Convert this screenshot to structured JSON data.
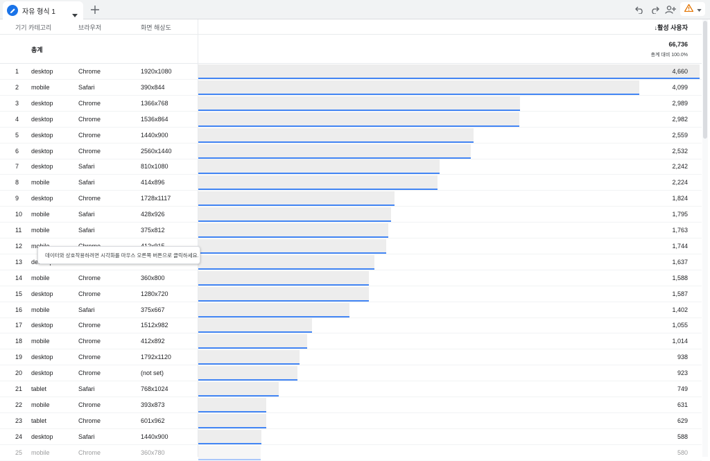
{
  "tab": {
    "title": "자유 형식 1"
  },
  "columns": {
    "category": "기기 카테고리",
    "browser": "브라우저",
    "resolution": "화면 해상도",
    "metric": "↓활성 사용자"
  },
  "totals": {
    "label": "총계",
    "value": "66,736",
    "sub": "총계 대비 100.0%"
  },
  "max_value": 4660,
  "rows": [
    {
      "idx": "1",
      "cat": "desktop",
      "br": "Chrome",
      "res": "1920x1080",
      "val": "4,660",
      "n": 4660
    },
    {
      "idx": "2",
      "cat": "mobile",
      "br": "Safari",
      "res": "390x844",
      "val": "4,099",
      "n": 4099
    },
    {
      "idx": "3",
      "cat": "desktop",
      "br": "Chrome",
      "res": "1366x768",
      "val": "2,989",
      "n": 2989
    },
    {
      "idx": "4",
      "cat": "desktop",
      "br": "Chrome",
      "res": "1536x864",
      "val": "2,982",
      "n": 2982
    },
    {
      "idx": "5",
      "cat": "desktop",
      "br": "Chrome",
      "res": "1440x900",
      "val": "2,559",
      "n": 2559
    },
    {
      "idx": "6",
      "cat": "desktop",
      "br": "Chrome",
      "res": "2560x1440",
      "val": "2,532",
      "n": 2532
    },
    {
      "idx": "7",
      "cat": "desktop",
      "br": "Safari",
      "res": "810x1080",
      "val": "2,242",
      "n": 2242
    },
    {
      "idx": "8",
      "cat": "mobile",
      "br": "Safari",
      "res": "414x896",
      "val": "2,224",
      "n": 2224
    },
    {
      "idx": "9",
      "cat": "desktop",
      "br": "Chrome",
      "res": "1728x1117",
      "val": "1,824",
      "n": 1824
    },
    {
      "idx": "10",
      "cat": "mobile",
      "br": "Safari",
      "res": "428x926",
      "val": "1,795",
      "n": 1795
    },
    {
      "idx": "11",
      "cat": "mobile",
      "br": "Safari",
      "res": "375x812",
      "val": "1,763",
      "n": 1763
    },
    {
      "idx": "12",
      "cat": "mobile",
      "br": "Chrome",
      "res": "412x915",
      "val": "1,744",
      "n": 1744
    },
    {
      "idx": "13",
      "cat": "desktop",
      "br": "",
      "res": "",
      "val": "1,637",
      "n": 1637
    },
    {
      "idx": "14",
      "cat": "mobile",
      "br": "Chrome",
      "res": "360x800",
      "val": "1,588",
      "n": 1588
    },
    {
      "idx": "15",
      "cat": "desktop",
      "br": "Chrome",
      "res": "1280x720",
      "val": "1,587",
      "n": 1587
    },
    {
      "idx": "16",
      "cat": "mobile",
      "br": "Safari",
      "res": "375x667",
      "val": "1,402",
      "n": 1402
    },
    {
      "idx": "17",
      "cat": "desktop",
      "br": "Chrome",
      "res": "1512x982",
      "val": "1,055",
      "n": 1055
    },
    {
      "idx": "18",
      "cat": "mobile",
      "br": "Chrome",
      "res": "412x892",
      "val": "1,014",
      "n": 1014
    },
    {
      "idx": "19",
      "cat": "desktop",
      "br": "Chrome",
      "res": "1792x1120",
      "val": "938",
      "n": 938
    },
    {
      "idx": "20",
      "cat": "desktop",
      "br": "Chrome",
      "res": "(not set)",
      "val": "923",
      "n": 923
    },
    {
      "idx": "21",
      "cat": "tablet",
      "br": "Safari",
      "res": "768x1024",
      "val": "749",
      "n": 749
    },
    {
      "idx": "22",
      "cat": "mobile",
      "br": "Chrome",
      "res": "393x873",
      "val": "631",
      "n": 631
    },
    {
      "idx": "23",
      "cat": "tablet",
      "br": "Chrome",
      "res": "601x962",
      "val": "629",
      "n": 629
    },
    {
      "idx": "24",
      "cat": "desktop",
      "br": "Safari",
      "res": "1440x900",
      "val": "588",
      "n": 588
    },
    {
      "idx": "25",
      "cat": "mobile",
      "br": "Chrome",
      "res": "360x780",
      "val": "580",
      "n": 580
    }
  ],
  "tooltip": {
    "text": "데이터와 상호작용하려면 시각화를 마우스 오른쪽 버튼으로 클릭하세요."
  },
  "colors": {
    "accent": "#1a73e8",
    "bar": "#4285f4",
    "bar_bg": "#ededed",
    "warning": "#e37400"
  },
  "icons": {
    "tab": "pencil-icon",
    "caret": "caret-down-icon",
    "add": "plus-icon",
    "undo": "undo-icon",
    "redo": "redo-icon",
    "share": "share-user-icon",
    "warning": "warning-icon"
  }
}
